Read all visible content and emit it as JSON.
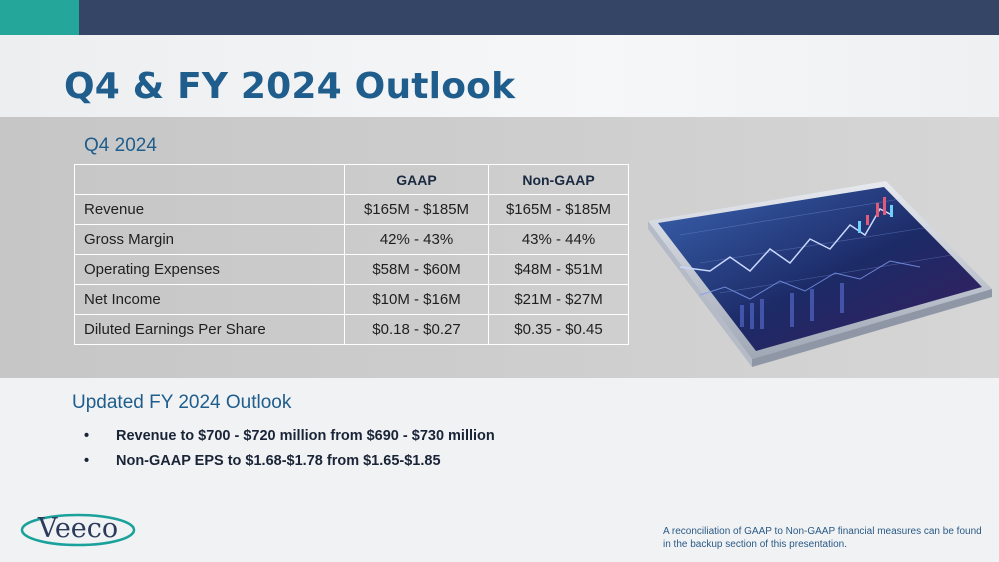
{
  "slide": {
    "title": "Q4 & FY 2024 Outlook"
  },
  "q4": {
    "label": "Q4 2024",
    "table": {
      "headers": [
        "",
        "GAAP",
        "Non-GAAP"
      ],
      "rows": [
        {
          "label": "Revenue",
          "gaap": "$165M - $185M",
          "nongaap": "$165M - $185M"
        },
        {
          "label": "Gross Margin",
          "gaap": "42% - 43%",
          "nongaap": "43% - 44%"
        },
        {
          "label": "Operating Expenses",
          "gaap": "$58M - $60M",
          "nongaap": "$48M - $51M"
        },
        {
          "label": "Net Income",
          "gaap": "$10M - $16M",
          "nongaap": "$21M - $27M"
        },
        {
          "label": "Diluted Earnings Per Share",
          "gaap": "$0.18 - $0.27",
          "nongaap": "$0.35 - $0.45"
        }
      ]
    }
  },
  "fy": {
    "title": "Updated FY 2024 Outlook",
    "bullet_char": "•",
    "bullets": [
      "Revenue to $700 - $720 million from $690 - $730 million",
      "Non-GAAP EPS to $1.68-$1.78 from $1.65-$1.85"
    ]
  },
  "logo": {
    "text": "Veeco"
  },
  "footnote": {
    "text": "A reconciliation of GAAP to Non-GAAP financial measures can be found in the backup section of this presentation."
  },
  "colors": {
    "topbar": "#344566",
    "accent": "#25a69a",
    "title": "#1e5d8c"
  }
}
